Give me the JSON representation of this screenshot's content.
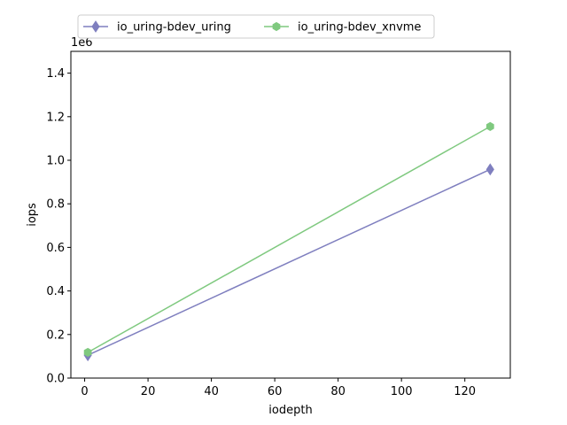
{
  "chart_data": {
    "type": "line",
    "xlabel": "iodepth",
    "ylabel": "iops",
    "y_offset_label": "1e6",
    "xlim": [
      -4.35,
      134.35
    ],
    "ylim": [
      0,
      1500000
    ],
    "x_ticks": [
      0,
      20,
      40,
      60,
      80,
      100,
      120
    ],
    "x_tick_labels": [
      "0",
      "20",
      "40",
      "60",
      "80",
      "100",
      "120"
    ],
    "y_ticks": [
      0,
      200000,
      400000,
      600000,
      800000,
      1000000,
      1200000,
      1400000
    ],
    "y_tick_labels": [
      "0.0",
      "0.2",
      "0.4",
      "0.6",
      "0.8",
      "1.0",
      "1.2",
      "1.4"
    ],
    "grid": false,
    "legend_position": "top-center-outside",
    "series": [
      {
        "name": "io_uring-bdev_uring",
        "color": "#7f7fbf",
        "marker": "diamond",
        "x": [
          1,
          128
        ],
        "y": [
          105000,
          958000
        ]
      },
      {
        "name": "io_uring-bdev_xnvme",
        "color": "#7fc97f",
        "marker": "hexagon",
        "x": [
          1,
          128
        ],
        "y": [
          118000,
          1155000
        ]
      }
    ]
  }
}
